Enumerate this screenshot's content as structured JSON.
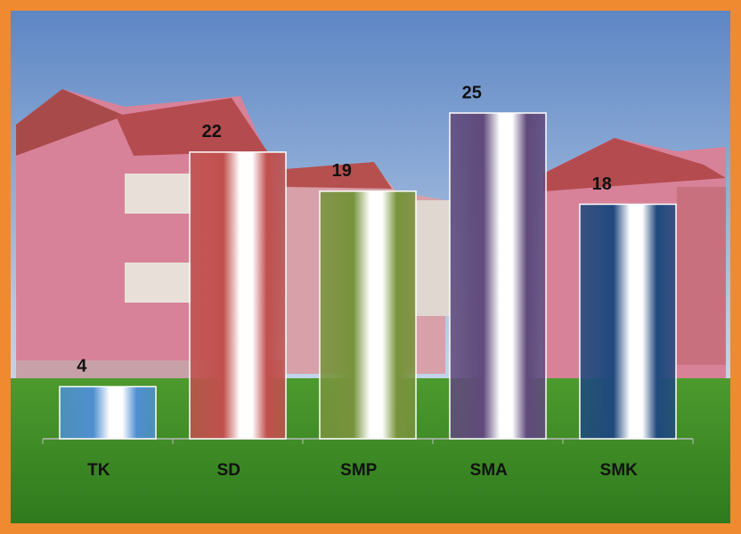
{
  "chart_data": {
    "type": "bar",
    "categories": [
      "TK",
      "SD",
      "SMP",
      "SMA",
      "SMK"
    ],
    "values": [
      4,
      22,
      19,
      25,
      18
    ],
    "colors": [
      "#4f8fd0",
      "#c0504d",
      "#77933c",
      "#604a7b",
      "#1f497d"
    ],
    "ylim": [
      0,
      25
    ]
  }
}
